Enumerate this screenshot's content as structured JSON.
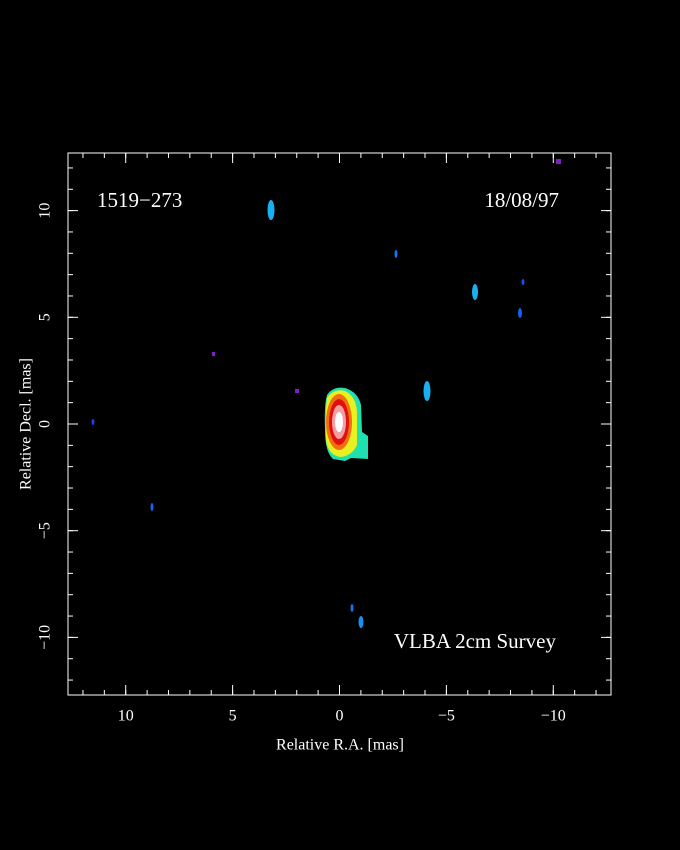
{
  "chart_data": {
    "type": "image",
    "annotations": [
      "1519−273",
      "18/08/97",
      "VLBA 2cm Survey"
    ],
    "xlabel": "Relative R.A. [mas]",
    "ylabel": "Relative Decl. [mas]",
    "xlim": [
      12.7,
      -12.7
    ],
    "ylim": [
      -12.7,
      12.7
    ],
    "xticks": [
      10,
      5,
      0,
      {
        "value": -5,
        "label": "−5"
      },
      {
        "value": -10,
        "label": "−10"
      }
    ],
    "yticks": [
      {
        "value": -10,
        "label": "−10"
      },
      {
        "value": -5,
        "label": "−5"
      },
      0,
      5,
      10
    ],
    "minor_tick_step": 1
  }
}
